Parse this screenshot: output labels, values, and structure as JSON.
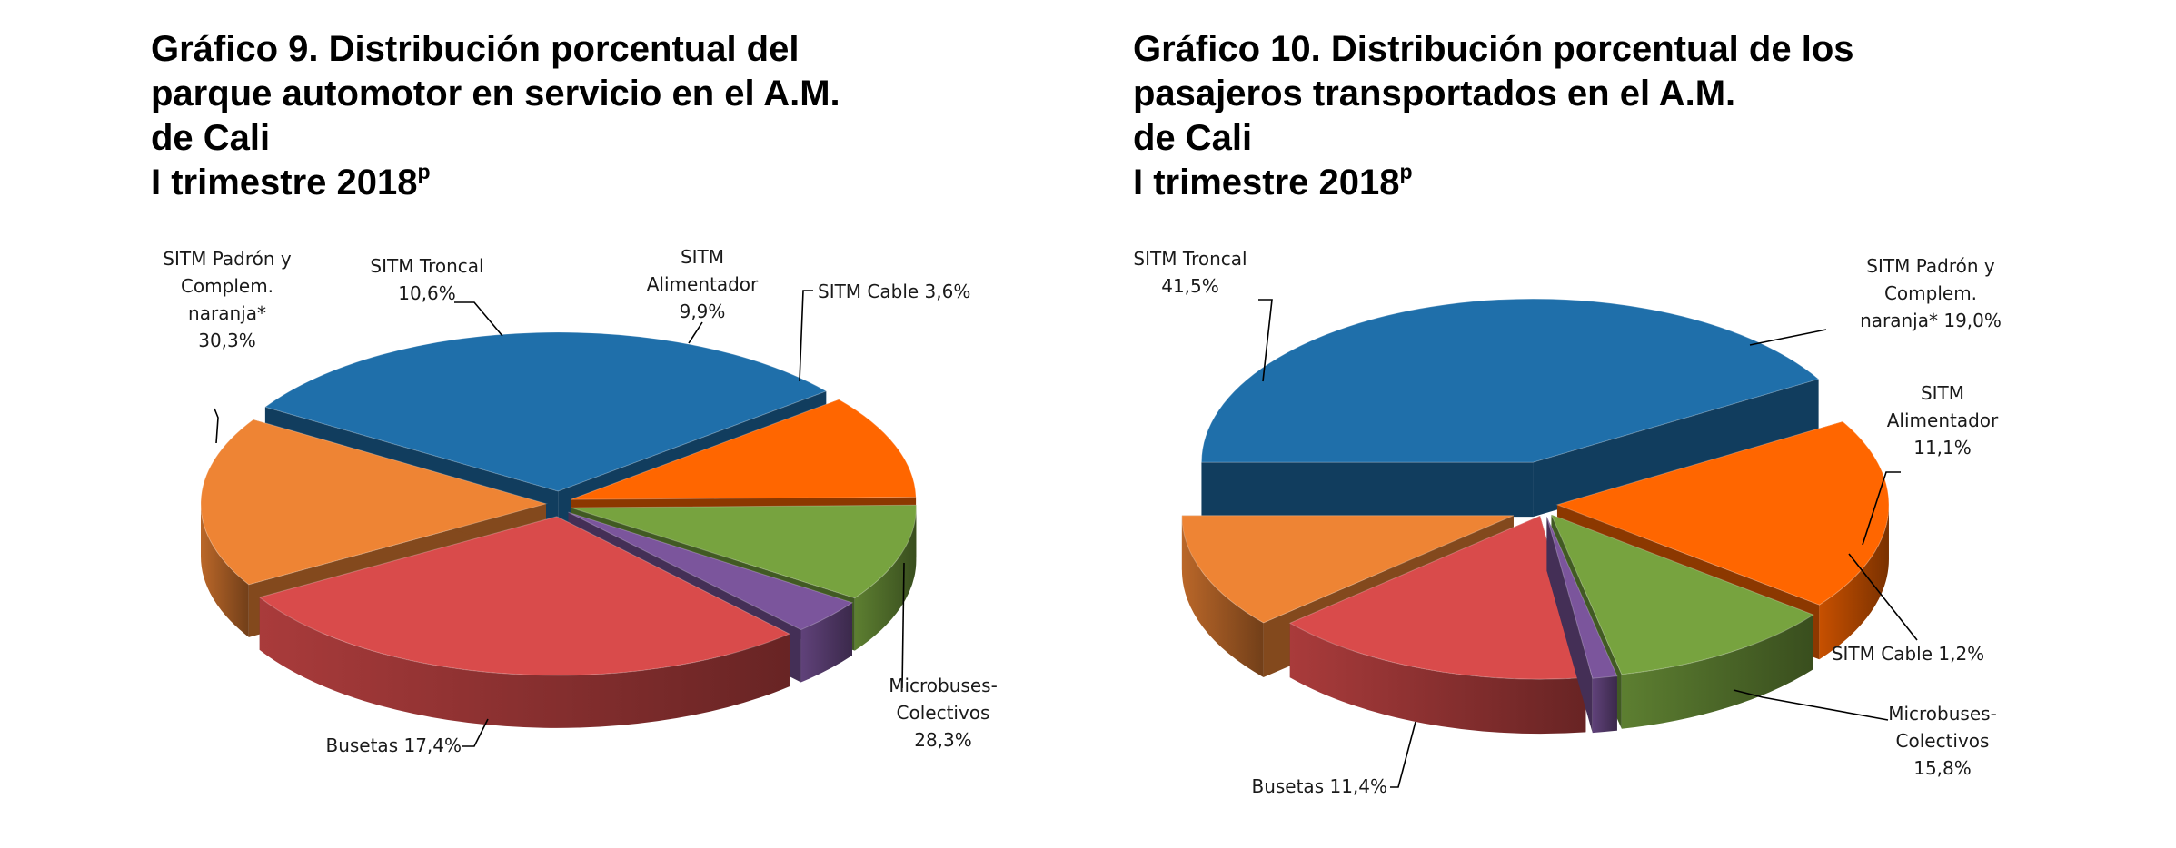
{
  "chart_data": [
    {
      "type": "pie",
      "title_lines": [
        "Gráfico 9. Distribución porcentual del",
        "parque automotor en servicio en el A.M.",
        "de Cali",
        "I trimestre 2018"
      ],
      "title_sup": "p",
      "slices": [
        {
          "label_lines": [
            "SITM Padrón y",
            "Complem.",
            "naranja*",
            "30,3%"
          ],
          "name": "SITM Padrón y Complem. naranja*",
          "value": 30.3,
          "color": "#1F6FAA"
        },
        {
          "label_lines": [
            "SITM Troncal",
            "10,6%"
          ],
          "name": "SITM Troncal",
          "value": 10.6,
          "color": "#FF6600"
        },
        {
          "label_lines": [
            "SITM",
            "Alimentador",
            "9,9%"
          ],
          "name": "SITM Alimentador",
          "value": 9.9,
          "color": "#77A33F"
        },
        {
          "label_lines": [
            "SITM Cable 3,6%"
          ],
          "name": "SITM Cable",
          "value": 3.6,
          "color": "#7B559C"
        },
        {
          "label_lines": [
            "Microbuses-",
            "Colectivos",
            "28,3%"
          ],
          "name": "Microbuses-Colectivos",
          "value": 28.3,
          "color": "#D94B4B"
        },
        {
          "label_lines": [
            "Busetas 17,4%"
          ],
          "name": "Busetas",
          "value": 17.4,
          "color": "#EE8434"
        }
      ]
    },
    {
      "type": "pie",
      "title_lines": [
        "Gráfico 10. Distribución porcentual de los",
        "pasajeros transportados en el A.M.",
        "de Cali",
        "I trimestre 2018"
      ],
      "title_sup": "p",
      "slices": [
        {
          "label_lines": [
            "SITM Troncal",
            "41,5%"
          ],
          "name": "SITM Troncal",
          "value": 41.5,
          "color": "#1F6FAA"
        },
        {
          "label_lines": [
            "SITM Padrón y",
            "Complem.",
            "naranja*  19,0%"
          ],
          "name": "SITM Padrón y Complem. naranja*",
          "value": 19.0,
          "color": "#FF6600"
        },
        {
          "label_lines": [
            "SITM",
            "Alimentador",
            "11,1%"
          ],
          "name": "SITM Alimentador",
          "value": 11.1,
          "color": "#77A33F"
        },
        {
          "label_lines": [
            "SITM Cable 1,2%"
          ],
          "name": "SITM Cable",
          "value": 1.2,
          "color": "#7B559C"
        },
        {
          "label_lines": [
            "Microbuses-",
            "Colectivos",
            "15,8%"
          ],
          "name": "Microbuses-Colectivos",
          "value": 15.8,
          "color": "#D94B4B"
        },
        {
          "label_lines": [
            "Busetas 11,4%"
          ],
          "name": "Busetas",
          "value": 11.4,
          "color": "#EE8434"
        }
      ]
    }
  ]
}
